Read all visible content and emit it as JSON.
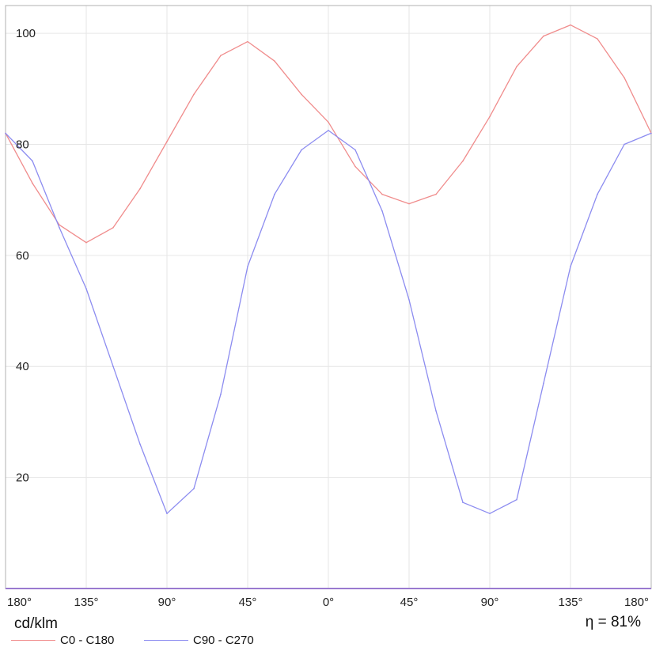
{
  "chart_data": {
    "type": "line",
    "x_ticks": [
      "180°",
      "135°",
      "90°",
      "45°",
      "0°",
      "45°",
      "90°",
      "135°",
      "180°"
    ],
    "x": [
      -180,
      -165,
      -150,
      -135,
      -120,
      -105,
      -90,
      -75,
      -60,
      -45,
      -30,
      -15,
      0,
      15,
      30,
      45,
      60,
      75,
      90,
      105,
      120,
      135,
      150,
      165,
      180
    ],
    "ylim": [
      0,
      105
    ],
    "y_ticks": [
      20,
      40,
      60,
      80,
      100
    ],
    "grid": true,
    "y_unit": "cd/klm",
    "efficiency": "η = 81%",
    "series": [
      {
        "name": "C0 - C180",
        "color": "#f08c8c",
        "values": [
          82,
          73,
          65.5,
          62.3,
          65,
          72,
          80.5,
          89,
          96,
          98.5,
          95,
          89,
          84,
          76,
          71,
          69.3,
          71,
          77,
          85,
          94,
          99.5,
          101.5,
          99,
          92,
          82
        ]
      },
      {
        "name": "C90 - C270",
        "color": "#8c8cf0",
        "values": [
          82,
          77,
          65,
          54,
          40,
          26,
          13.5,
          18,
          35,
          58,
          71,
          79,
          82.5,
          79,
          68,
          52,
          32,
          15.5,
          13.5,
          16,
          37,
          58,
          71,
          80,
          82
        ]
      }
    ]
  }
}
